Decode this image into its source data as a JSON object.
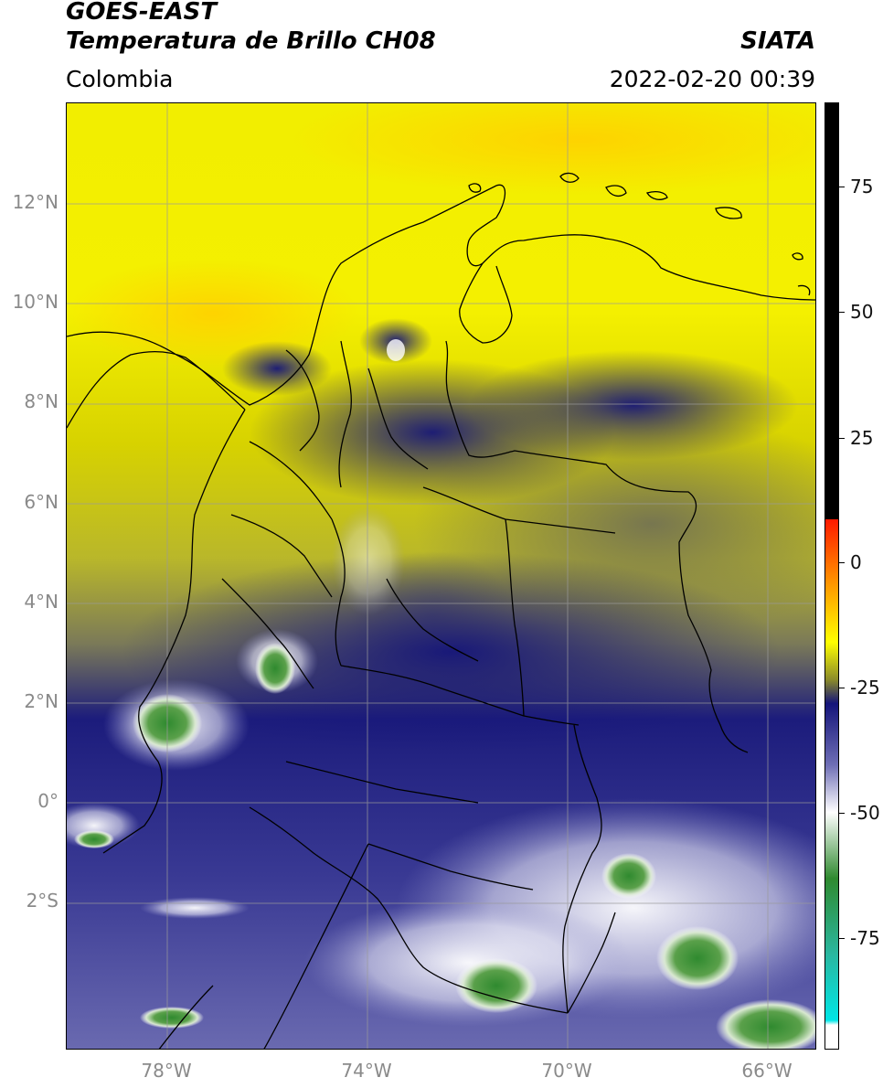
{
  "header": {
    "satellite": "GOES-EAST",
    "product": "Temperatura de Brillo CH08",
    "region": "Colombia",
    "source": "SIATA",
    "datetime": "2022-02-20 00:39"
  },
  "map": {
    "lat_labels": [
      "12°N",
      "10°N",
      "8°N",
      "6°N",
      "4°N",
      "2°N",
      "0°",
      "2°S"
    ],
    "lon_labels": [
      "78°W",
      "74°W",
      "70°W",
      "66°W"
    ]
  },
  "colorbar": {
    "tick_labels": [
      "75",
      "50",
      "25",
      "0",
      "-25",
      "-50",
      "-75"
    ],
    "colors": {
      "black_band": "#000000",
      "red": "#ff1a00",
      "orange": "#ff9a00",
      "yellow": "#ffff00",
      "olive": "#8a8a2a",
      "navy": "#14147a",
      "blue_gray": "#6f6fb6",
      "white": "#ffffff",
      "green": "#2f8a2f",
      "teal": "#2ab7a0",
      "cyan": "#00e6e6"
    }
  }
}
